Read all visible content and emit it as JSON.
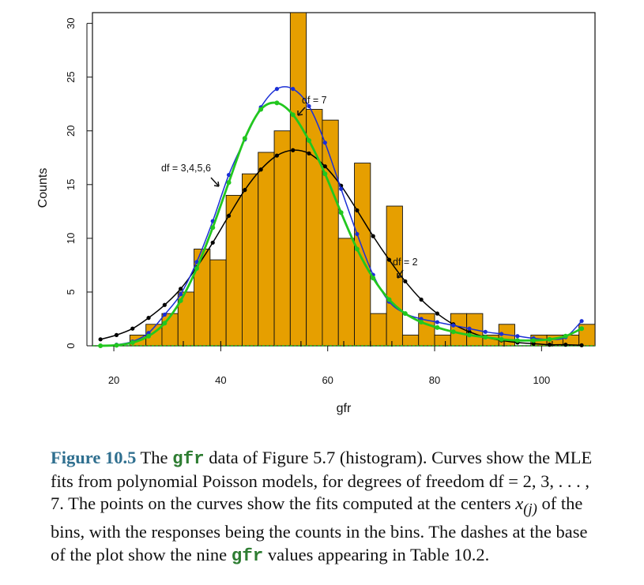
{
  "chart_data": {
    "type": "bar",
    "xlabel": "gfr",
    "ylabel": "Counts",
    "xlim": [
      16,
      110
    ],
    "ylim": [
      0,
      31
    ],
    "xticks": [
      20,
      40,
      60,
      80,
      100
    ],
    "yticks": [
      0,
      5,
      10,
      15,
      20,
      25,
      30
    ],
    "bars": {
      "edges": [
        23,
        26,
        29,
        32,
        35,
        38,
        41,
        44,
        47,
        50,
        53,
        56,
        59,
        62,
        65,
        68,
        71,
        74,
        77,
        80,
        83,
        86,
        89,
        92,
        95,
        98,
        101,
        104,
        107,
        110
      ],
      "counts": [
        1,
        2,
        3,
        5,
        9,
        8,
        14,
        16,
        18,
        20,
        31,
        22,
        21,
        10,
        17,
        3,
        13,
        1,
        3,
        1,
        3,
        3,
        1,
        2,
        0,
        1,
        1,
        1,
        2
      ]
    },
    "series": [
      {
        "name": "df = 2",
        "color": "#000000",
        "x": [
          17.5,
          20.5,
          23.5,
          26.5,
          29.5,
          32.5,
          35.5,
          38.5,
          41.5,
          44.5,
          47.5,
          50.5,
          53.5,
          56.5,
          59.5,
          62.5,
          65.5,
          68.5,
          71.5,
          74.5,
          77.5,
          80.5,
          83.5,
          86.5,
          89.5,
          92.5,
          95.5,
          98.5,
          101.5,
          104.5,
          107.5
        ],
        "y": [
          0.6,
          1.0,
          1.6,
          2.6,
          3.8,
          5.3,
          7.3,
          9.6,
          12.1,
          14.5,
          16.4,
          17.7,
          18.2,
          17.9,
          16.7,
          14.9,
          12.6,
          10.2,
          8.0,
          6.0,
          4.3,
          3.0,
          2.0,
          1.3,
          0.8,
          0.5,
          0.3,
          0.2,
          0.1,
          0.1,
          0.05
        ]
      },
      {
        "name": "df = 7",
        "color": "#1b2fd6",
        "x": [
          17.5,
          20.5,
          23.5,
          26.5,
          29.5,
          32.5,
          35.5,
          38.5,
          41.5,
          44.5,
          47.5,
          50.5,
          53.5,
          56.5,
          59.5,
          62.5,
          65.5,
          68.5,
          71.5,
          74.5,
          77.5,
          80.5,
          83.5,
          86.5,
          89.5,
          92.5,
          95.5,
          98.5,
          101.5,
          104.5,
          107.5
        ],
        "y": [
          0.0,
          0.1,
          0.4,
          1.2,
          2.9,
          4.8,
          7.8,
          11.6,
          15.9,
          19.2,
          22.2,
          23.9,
          23.9,
          22.3,
          18.9,
          14.6,
          10.4,
          6.6,
          4.1,
          3.0,
          2.5,
          2.2,
          1.9,
          1.6,
          1.3,
          1.1,
          0.9,
          0.7,
          0.6,
          0.8,
          2.3
        ]
      },
      {
        "name": "df = 3,4,5,6",
        "color": "#22c71f",
        "x": [
          17.5,
          20.5,
          23.5,
          26.5,
          29.5,
          32.5,
          35.5,
          38.5,
          41.5,
          44.5,
          47.5,
          50.5,
          53.5,
          56.5,
          59.5,
          62.5,
          65.5,
          68.5,
          71.5,
          74.5,
          77.5,
          80.5,
          83.5,
          86.5,
          89.5,
          92.5,
          95.5,
          98.5,
          101.5,
          104.5,
          107.5
        ],
        "y": [
          0.0,
          0.05,
          0.3,
          0.9,
          2.1,
          4.2,
          7.2,
          11.0,
          15.2,
          19.3,
          22.0,
          22.6,
          21.5,
          19.1,
          16.0,
          12.4,
          9.0,
          6.3,
          4.3,
          3.0,
          2.2,
          1.7,
          1.3,
          1.0,
          0.8,
          0.6,
          0.5,
          0.5,
          0.6,
          0.9,
          1.6
        ]
      }
    ],
    "rug": [
      33,
      40,
      55,
      63,
      68,
      72,
      82,
      93,
      102
    ],
    "annotations": [
      {
        "text": "df = 7"
      },
      {
        "text": "df = 3,4,5,6"
      },
      {
        "text": "df = 2"
      }
    ],
    "colors": {
      "bar_fill": "#e69f00",
      "bar_stroke": "#111111",
      "baseline": "#22a822"
    },
    "grid": false
  },
  "caption": {
    "label": "Figure 10.5",
    "part1": " The ",
    "code1": "gfr",
    "part2": " data of Figure 5.7 (histogram). Curves show the MLE fits from polynomial Poisson models, for degrees of freedom df = 2, 3, . . . , 7. The points on the curves show the fits computed at the centers ",
    "math": "x(j)",
    "part3": " of the bins, with the responses being the counts in the bins. The dashes at the base of the plot show the nine ",
    "code2": "gfr",
    "part4": " values appearing in Table 10.2."
  }
}
